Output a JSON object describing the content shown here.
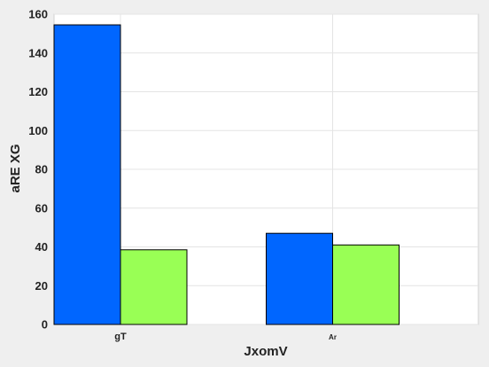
{
  "chart_data": {
    "type": "bar",
    "title": "",
    "xlabel": "JxomV",
    "ylabel": "aRE XG",
    "categories": [
      "gT",
      "Ar"
    ],
    "series": [
      {
        "values": [
          154.5,
          47
        ],
        "color": "#0066ff"
      },
      {
        "values": [
          38.5,
          41
        ],
        "color": "#99ff55"
      }
    ],
    "ylim": [
      0,
      160
    ],
    "yticks": [
      0,
      20,
      40,
      60,
      80,
      100,
      120,
      140,
      160
    ],
    "grid": true,
    "legend": "none",
    "background": "#ffffff",
    "figure_background": "#efefef"
  }
}
